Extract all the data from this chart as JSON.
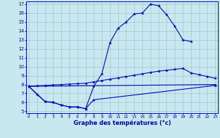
{
  "bg_color": "#c8e8f0",
  "grid_color": "#a0b8c8",
  "line_color": "#0000bb",
  "xlabel": "Graphe des températures (°c)",
  "x_min": 0,
  "x_max": 23,
  "y_min": 5,
  "y_max": 17,
  "curves": [
    {
      "x": [
        0,
        1,
        2,
        3,
        4,
        5,
        6,
        7,
        8,
        9,
        10,
        11,
        12,
        13,
        14,
        15,
        16,
        17,
        18,
        19,
        20
      ],
      "y": [
        7.8,
        6.9,
        6.1,
        6.0,
        5.7,
        5.5,
        5.5,
        5.3,
        7.8,
        9.2,
        12.7,
        14.3,
        15.0,
        15.9,
        16.0,
        17.0,
        16.8,
        15.8,
        14.5,
        13.0,
        12.8
      ]
    },
    {
      "x": [
        0,
        1,
        2,
        3,
        4,
        5,
        6,
        7,
        8,
        9,
        10,
        11,
        12,
        13,
        14,
        15,
        16,
        17,
        18,
        19,
        20,
        21,
        22,
        23
      ],
      "y": [
        7.8,
        7.85,
        7.9,
        7.95,
        8.0,
        8.05,
        8.1,
        8.15,
        8.3,
        8.45,
        8.6,
        8.75,
        8.9,
        9.05,
        9.2,
        9.35,
        9.5,
        9.6,
        9.7,
        9.8,
        9.3,
        9.1,
        8.9,
        8.7
      ]
    },
    {
      "x": [
        0,
        23
      ],
      "y": [
        7.8,
        8.0
      ]
    },
    {
      "x": [
        0,
        2,
        3,
        4,
        5,
        6,
        7,
        8,
        23
      ],
      "y": [
        7.8,
        6.1,
        6.0,
        5.7,
        5.5,
        5.5,
        5.3,
        6.3,
        7.9
      ]
    }
  ]
}
